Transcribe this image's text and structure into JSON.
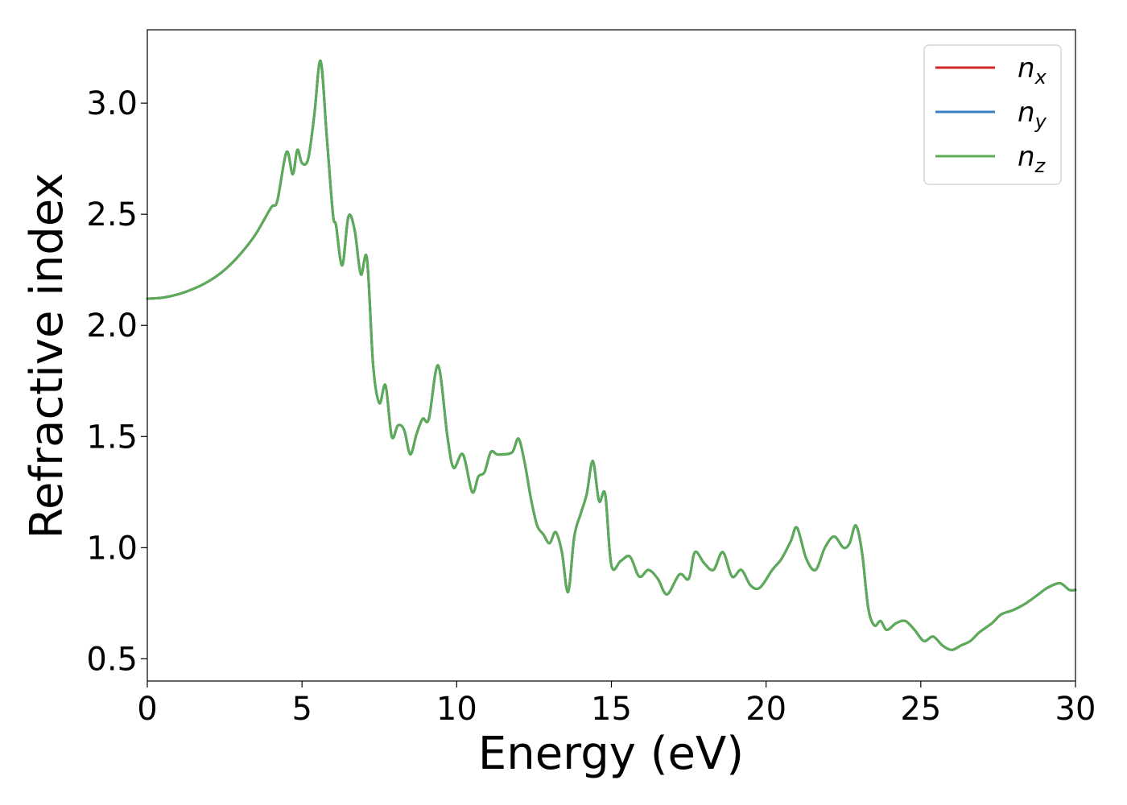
{
  "chart_data": {
    "type": "line",
    "xlabel": "Energy (eV)",
    "ylabel": "Refractive index",
    "xlim": [
      0,
      30
    ],
    "ylim": [
      0.4,
      3.33
    ],
    "xticks": [
      0,
      5,
      10,
      15,
      20,
      25,
      30
    ],
    "yticks": [
      0.5,
      1.0,
      1.5,
      2.0,
      2.5,
      3.0
    ],
    "xtick_labels": [
      "0",
      "5",
      "10",
      "15",
      "20",
      "25",
      "30"
    ],
    "ytick_labels": [
      "0.5",
      "1.0",
      "1.5",
      "2.0",
      "2.5",
      "3.0"
    ],
    "grid": false,
    "legend_position": "top-right",
    "series": [
      {
        "name": "n_x",
        "legend_base": "n",
        "legend_sub": "x",
        "color": "#d62728",
        "x": [
          0,
          0.5,
          1,
          1.5,
          2,
          2.5,
          3,
          3.5,
          4,
          4.2,
          4.5,
          4.7,
          4.85,
          5,
          5.2,
          5.4,
          5.6,
          5.8,
          6,
          6.1,
          6.3,
          6.5,
          6.7,
          6.9,
          7.1,
          7.3,
          7.5,
          7.7,
          7.9,
          8.1,
          8.3,
          8.5,
          8.7,
          8.9,
          9.1,
          9.4,
          9.7,
          9.9,
          10.2,
          10.5,
          10.7,
          10.9,
          11.1,
          11.3,
          11.5,
          11.8,
          12.0,
          12.2,
          12.4,
          12.6,
          12.8,
          13.0,
          13.2,
          13.4,
          13.6,
          13.8,
          14.0,
          14.2,
          14.4,
          14.6,
          14.8,
          15.0,
          15.3,
          15.6,
          15.9,
          16.2,
          16.5,
          16.8,
          17.2,
          17.5,
          17.7,
          18.0,
          18.3,
          18.6,
          18.9,
          19.2,
          19.5,
          19.8,
          20.2,
          20.5,
          20.8,
          21.0,
          21.3,
          21.6,
          21.9,
          22.2,
          22.5,
          22.7,
          22.9,
          23.1,
          23.3,
          23.5,
          23.7,
          23.9,
          24.2,
          24.5,
          24.8,
          25.1,
          25.4,
          25.7,
          26.0,
          26.3,
          26.6,
          26.9,
          27.3,
          27.6,
          28.0,
          28.4,
          28.8,
          29.1,
          29.5,
          29.8,
          30
        ],
        "y": [
          2.12,
          2.125,
          2.14,
          2.165,
          2.2,
          2.25,
          2.32,
          2.41,
          2.53,
          2.56,
          2.78,
          2.68,
          2.79,
          2.73,
          2.75,
          2.95,
          3.19,
          2.85,
          2.5,
          2.45,
          2.27,
          2.49,
          2.43,
          2.23,
          2.3,
          1.82,
          1.65,
          1.73,
          1.5,
          1.55,
          1.53,
          1.42,
          1.51,
          1.58,
          1.58,
          1.82,
          1.5,
          1.36,
          1.42,
          1.25,
          1.32,
          1.34,
          1.43,
          1.42,
          1.42,
          1.43,
          1.49,
          1.38,
          1.22,
          1.1,
          1.06,
          1.02,
          1.07,
          0.98,
          0.8,
          1.05,
          1.15,
          1.24,
          1.39,
          1.21,
          1.24,
          0.92,
          0.94,
          0.96,
          0.87,
          0.9,
          0.86,
          0.79,
          0.88,
          0.86,
          0.98,
          0.93,
          0.9,
          0.98,
          0.87,
          0.9,
          0.83,
          0.82,
          0.9,
          0.95,
          1.03,
          1.09,
          0.95,
          0.9,
          1.0,
          1.05,
          1.0,
          1.02,
          1.1,
          0.98,
          0.73,
          0.65,
          0.67,
          0.63,
          0.66,
          0.67,
          0.63,
          0.58,
          0.6,
          0.56,
          0.54,
          0.56,
          0.58,
          0.62,
          0.66,
          0.7,
          0.72,
          0.75,
          0.79,
          0.82,
          0.84,
          0.81,
          0.81
        ],
        "visible_in_plot": false
      },
      {
        "name": "n_y",
        "legend_base": "n",
        "legend_sub": "y",
        "color": "#3a7fc0",
        "x": [
          0,
          0.5,
          1,
          1.5,
          2,
          2.5,
          3,
          3.5,
          4,
          4.2,
          4.5,
          4.7,
          4.85,
          5,
          5.2,
          5.4,
          5.6,
          5.8,
          6,
          6.1,
          6.3,
          6.5,
          6.7,
          6.9,
          7.1,
          7.3,
          7.5,
          7.7,
          7.9,
          8.1,
          8.3,
          8.5,
          8.7,
          8.9,
          9.1,
          9.4,
          9.7,
          9.9,
          10.2,
          10.5,
          10.7,
          10.9,
          11.1,
          11.3,
          11.5,
          11.8,
          12.0,
          12.2,
          12.4,
          12.6,
          12.8,
          13.0,
          13.2,
          13.4,
          13.6,
          13.8,
          14.0,
          14.2,
          14.4,
          14.6,
          14.8,
          15.0,
          15.3,
          15.6,
          15.9,
          16.2,
          16.5,
          16.8,
          17.2,
          17.5,
          17.7,
          18.0,
          18.3,
          18.6,
          18.9,
          19.2,
          19.5,
          19.8,
          20.2,
          20.5,
          20.8,
          21.0,
          21.3,
          21.6,
          21.9,
          22.2,
          22.5,
          22.7,
          22.9,
          23.1,
          23.3,
          23.5,
          23.7,
          23.9,
          24.2,
          24.5,
          24.8,
          25.1,
          25.4,
          25.7,
          26.0,
          26.3,
          26.6,
          26.9,
          27.3,
          27.6,
          28.0,
          28.4,
          28.8,
          29.1,
          29.5,
          29.8,
          30
        ],
        "y": [
          2.12,
          2.125,
          2.14,
          2.165,
          2.2,
          2.25,
          2.32,
          2.41,
          2.53,
          2.56,
          2.78,
          2.68,
          2.79,
          2.73,
          2.75,
          2.95,
          3.19,
          2.85,
          2.5,
          2.45,
          2.27,
          2.49,
          2.43,
          2.23,
          2.3,
          1.82,
          1.65,
          1.73,
          1.5,
          1.55,
          1.53,
          1.42,
          1.51,
          1.58,
          1.58,
          1.82,
          1.5,
          1.36,
          1.42,
          1.25,
          1.32,
          1.34,
          1.43,
          1.42,
          1.42,
          1.43,
          1.49,
          1.38,
          1.22,
          1.1,
          1.06,
          1.02,
          1.07,
          0.98,
          0.8,
          1.05,
          1.15,
          1.24,
          1.39,
          1.21,
          1.24,
          0.92,
          0.94,
          0.96,
          0.87,
          0.9,
          0.86,
          0.79,
          0.88,
          0.86,
          0.98,
          0.93,
          0.9,
          0.98,
          0.87,
          0.9,
          0.83,
          0.82,
          0.9,
          0.95,
          1.03,
          1.09,
          0.95,
          0.9,
          1.0,
          1.05,
          1.0,
          1.02,
          1.1,
          0.98,
          0.73,
          0.65,
          0.67,
          0.63,
          0.66,
          0.67,
          0.63,
          0.58,
          0.6,
          0.56,
          0.54,
          0.56,
          0.58,
          0.62,
          0.66,
          0.7,
          0.72,
          0.75,
          0.79,
          0.82,
          0.84,
          0.81,
          0.81
        ],
        "visible_in_plot": false
      },
      {
        "name": "n_z",
        "legend_base": "n",
        "legend_sub": "z",
        "color": "#5aac56",
        "x": [
          0,
          0.5,
          1,
          1.5,
          2,
          2.5,
          3,
          3.5,
          4,
          4.2,
          4.5,
          4.7,
          4.85,
          5,
          5.2,
          5.4,
          5.6,
          5.8,
          6,
          6.1,
          6.3,
          6.5,
          6.7,
          6.9,
          7.1,
          7.3,
          7.5,
          7.7,
          7.9,
          8.1,
          8.3,
          8.5,
          8.7,
          8.9,
          9.1,
          9.4,
          9.7,
          9.9,
          10.2,
          10.5,
          10.7,
          10.9,
          11.1,
          11.3,
          11.5,
          11.8,
          12.0,
          12.2,
          12.4,
          12.6,
          12.8,
          13.0,
          13.2,
          13.4,
          13.6,
          13.8,
          14.0,
          14.2,
          14.4,
          14.6,
          14.8,
          15.0,
          15.3,
          15.6,
          15.9,
          16.2,
          16.5,
          16.8,
          17.2,
          17.5,
          17.7,
          18.0,
          18.3,
          18.6,
          18.9,
          19.2,
          19.5,
          19.8,
          20.2,
          20.5,
          20.8,
          21.0,
          21.3,
          21.6,
          21.9,
          22.2,
          22.5,
          22.7,
          22.9,
          23.1,
          23.3,
          23.5,
          23.7,
          23.9,
          24.2,
          24.5,
          24.8,
          25.1,
          25.4,
          25.7,
          26.0,
          26.3,
          26.6,
          26.9,
          27.3,
          27.6,
          28.0,
          28.4,
          28.8,
          29.1,
          29.5,
          29.8,
          30
        ],
        "y": [
          2.12,
          2.125,
          2.14,
          2.165,
          2.2,
          2.25,
          2.32,
          2.41,
          2.53,
          2.56,
          2.78,
          2.68,
          2.79,
          2.73,
          2.75,
          2.95,
          3.19,
          2.85,
          2.5,
          2.45,
          2.27,
          2.49,
          2.43,
          2.23,
          2.3,
          1.82,
          1.65,
          1.73,
          1.5,
          1.55,
          1.53,
          1.42,
          1.51,
          1.58,
          1.58,
          1.82,
          1.5,
          1.36,
          1.42,
          1.25,
          1.32,
          1.34,
          1.43,
          1.42,
          1.42,
          1.43,
          1.49,
          1.38,
          1.22,
          1.1,
          1.06,
          1.02,
          1.07,
          0.98,
          0.8,
          1.05,
          1.15,
          1.24,
          1.39,
          1.21,
          1.24,
          0.92,
          0.94,
          0.96,
          0.87,
          0.9,
          0.86,
          0.79,
          0.88,
          0.86,
          0.98,
          0.93,
          0.9,
          0.98,
          0.87,
          0.9,
          0.83,
          0.82,
          0.9,
          0.95,
          1.03,
          1.09,
          0.95,
          0.9,
          1.0,
          1.05,
          1.0,
          1.02,
          1.1,
          0.98,
          0.73,
          0.65,
          0.67,
          0.63,
          0.66,
          0.67,
          0.63,
          0.58,
          0.6,
          0.56,
          0.54,
          0.56,
          0.58,
          0.62,
          0.66,
          0.7,
          0.72,
          0.75,
          0.79,
          0.82,
          0.84,
          0.81,
          0.81
        ],
        "visible_in_plot": true
      }
    ]
  }
}
